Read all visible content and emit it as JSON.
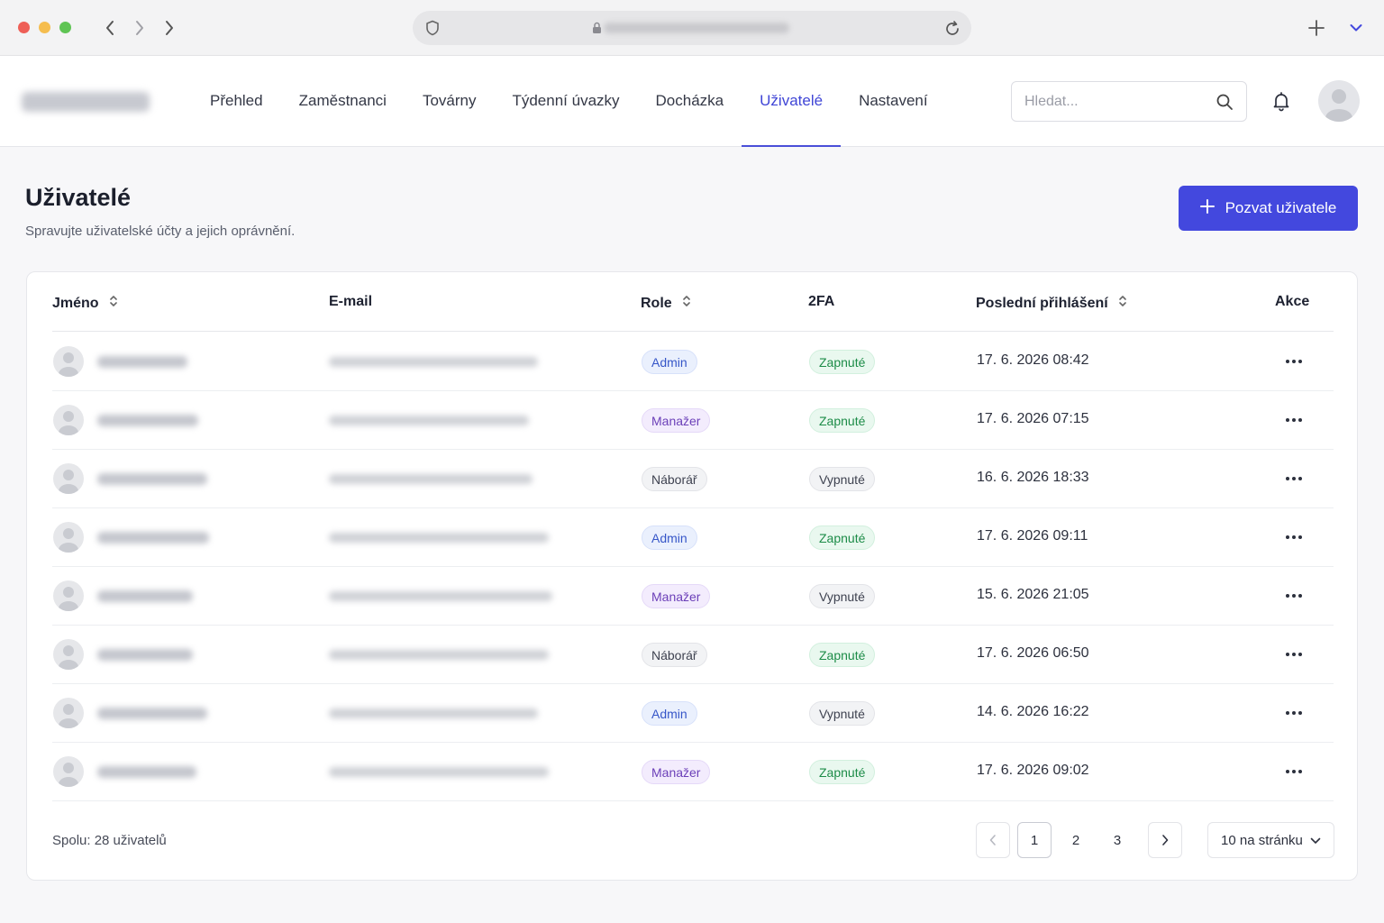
{
  "browser": {
    "url_obscured": true
  },
  "header": {
    "nav": [
      {
        "label": "Přehled",
        "active": false
      },
      {
        "label": "Zaměstnanci",
        "active": false
      },
      {
        "label": "Továrny",
        "active": false
      },
      {
        "label": "Týdenní úvazky",
        "active": false
      },
      {
        "label": "Docházka",
        "active": false
      },
      {
        "label": "Uživatelé",
        "active": true
      },
      {
        "label": "Nastavení",
        "active": false
      }
    ],
    "search_placeholder": "Hledat...",
    "accent_color": "#4348de"
  },
  "page": {
    "title": "Uživatelé",
    "subtitle": "Spravujte uživatelské účty a jejich oprávnění.",
    "invite_label": "Pozvat uživatele"
  },
  "table": {
    "columns": {
      "name": "Jméno",
      "email": "E-mail",
      "role": "Role",
      "tfa": "2FA",
      "last_login": "Poslední přihlášení",
      "actions": "Akce"
    },
    "rows": [
      {
        "role": "Admin",
        "role_kind": "admin",
        "tfa": "Zapnuté",
        "tfa_on": true,
        "last_login": "17. 6. 2026 08:42"
      },
      {
        "role": "Manažer",
        "role_kind": "manager",
        "tfa": "Zapnuté",
        "tfa_on": true,
        "last_login": "17. 6. 2026 07:15"
      },
      {
        "role": "Náborář",
        "role_kind": "recruiter",
        "tfa": "Vypnuté",
        "tfa_on": false,
        "last_login": "16. 6. 2026 18:33"
      },
      {
        "role": "Admin",
        "role_kind": "admin",
        "tfa": "Zapnuté",
        "tfa_on": true,
        "last_login": "17. 6. 2026 09:11"
      },
      {
        "role": "Manažer",
        "role_kind": "manager",
        "tfa": "Vypnuté",
        "tfa_on": false,
        "last_login": "15. 6. 2026 21:05"
      },
      {
        "role": "Náborář",
        "role_kind": "recruiter",
        "tfa": "Zapnuté",
        "tfa_on": true,
        "last_login": "17. 6. 2026 06:50"
      },
      {
        "role": "Admin",
        "role_kind": "admin",
        "tfa": "Vypnuté",
        "tfa_on": false,
        "last_login": "14. 6. 2026 16:22"
      },
      {
        "role": "Manažer",
        "role_kind": "manager",
        "tfa": "Zapnuté",
        "tfa_on": true,
        "last_login": "17. 6. 2026 09:02"
      }
    ]
  },
  "footer": {
    "total": "Spolu: 28 uživatelů",
    "pages": [
      "1",
      "2",
      "3"
    ],
    "current_page": "1",
    "per_page": "10 na stránku"
  }
}
